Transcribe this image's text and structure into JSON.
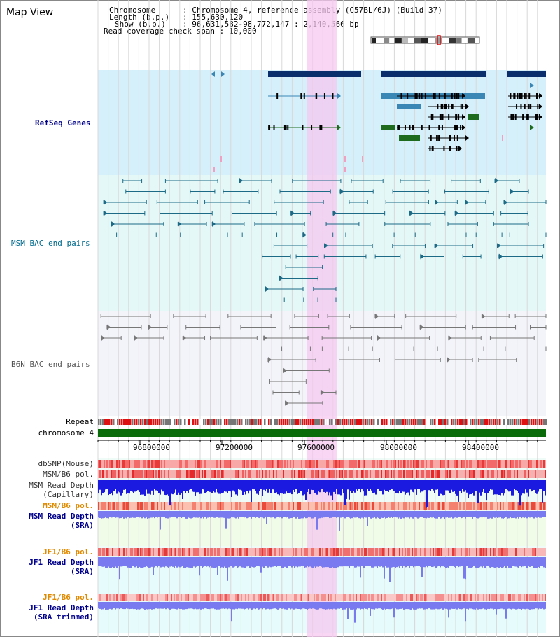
{
  "page": {
    "title": "Map View"
  },
  "info": {
    "chromosome_key": "Chromosome",
    "chromosome_val": "Chromosome 4, reference assembly (C57BL/6J) (Build 37)",
    "length_key": "Length (b.p.)",
    "length_val": "155,630,120",
    "show_key": "Show (b.p.)",
    "show_val": "96,631,582-98,772,147 : 2,140,566 bp",
    "coverage_key": "Read coverage check span",
    "coverage_val": "10,000"
  },
  "tracks": {
    "refseq": "RefSeq Genes",
    "msm_bac": "MSM BAC end pairs",
    "b6n_bac": "B6N BAC end pairs",
    "repeat": "Repeat",
    "chromosome": "chromosome 4",
    "dbsnp": "dbSNP(Mouse)",
    "msm_b6_pol_1": "MSM/B6 pol.",
    "msm_read_depth_cap_1": "MSM Read Depth",
    "msm_read_depth_cap_2": "(Capillary)",
    "msm_b6_pol_2": "MSM/B6 pol.",
    "msm_read_depth_sra_1": "MSM Read Depth",
    "msm_read_depth_sra_2": "(SRA)",
    "jf1_b6_pol_1": "JF1/B6 pol.",
    "jf1_read_depth_sra_1": "JF1 Read Depth",
    "jf1_read_depth_sra_2": "(SRA)",
    "jf1_b6_pol_2": "JF1/B6 pol.",
    "jf1_read_depth_trim_1": "JF1 Read Depth",
    "jf1_read_depth_trim_2": "(SRA trimmed)"
  },
  "axis": {
    "ticks": [
      "96800000",
      "97200000",
      "97600000",
      "98000000",
      "98400000"
    ]
  },
  "colors": {
    "refseq_bg": "#d6f0fb",
    "msm_bg": "#e4f8f8",
    "b6n_bg": "#f3f3fa",
    "highlight": "#f5c8f0",
    "chromosome": "#0a6b0a",
    "gene_dark": "#0a2d6b",
    "gene_mid": "#3a86b4",
    "gene_green": "#1e6b1e",
    "depth_capillary": "#1a1ae0",
    "depth_sra": "#7a7af0"
  }
}
